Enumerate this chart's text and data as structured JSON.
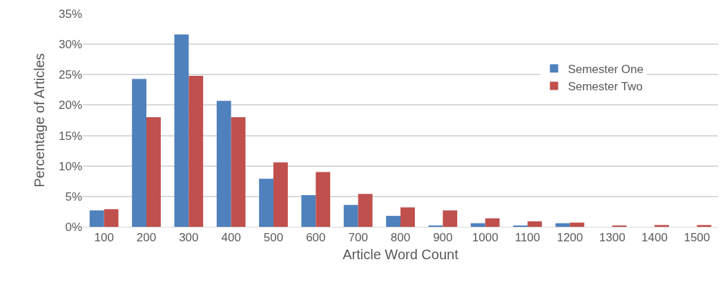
{
  "chart_data": {
    "type": "bar",
    "xlabel": "Article Word Count",
    "ylabel": "Percentage of Articles",
    "categories": [
      "100",
      "200",
      "300",
      "400",
      "500",
      "600",
      "700",
      "800",
      "900",
      "1000",
      "1100",
      "1200",
      "1300",
      "1400",
      "1500"
    ],
    "series": [
      {
        "name": "Semester One",
        "color": "#4f81bd",
        "values": [
          2.7,
          24.3,
          31.6,
          20.7,
          7.9,
          5.2,
          3.6,
          1.8,
          0.2,
          0.6,
          0.2,
          0.6,
          0,
          0,
          0
        ]
      },
      {
        "name": "Semester Two",
        "color": "#c0504d",
        "values": [
          2.9,
          18.0,
          24.8,
          18.0,
          10.6,
          9.0,
          5.4,
          3.2,
          2.7,
          1.4,
          0.9,
          0.7,
          0.2,
          0.3,
          0.3
        ]
      }
    ],
    "ylim": [
      0,
      35
    ],
    "yticks": [
      {
        "value": 0,
        "label": "0%"
      },
      {
        "value": 5,
        "label": "5%"
      },
      {
        "value": 10,
        "label": "10%"
      },
      {
        "value": 15,
        "label": "15%"
      },
      {
        "value": 20,
        "label": "20%"
      },
      {
        "value": 25,
        "label": "25%"
      },
      {
        "value": 30,
        "label": "30%"
      },
      {
        "value": 35,
        "label": "35%"
      }
    ],
    "grid": "y",
    "legend": "top right"
  }
}
